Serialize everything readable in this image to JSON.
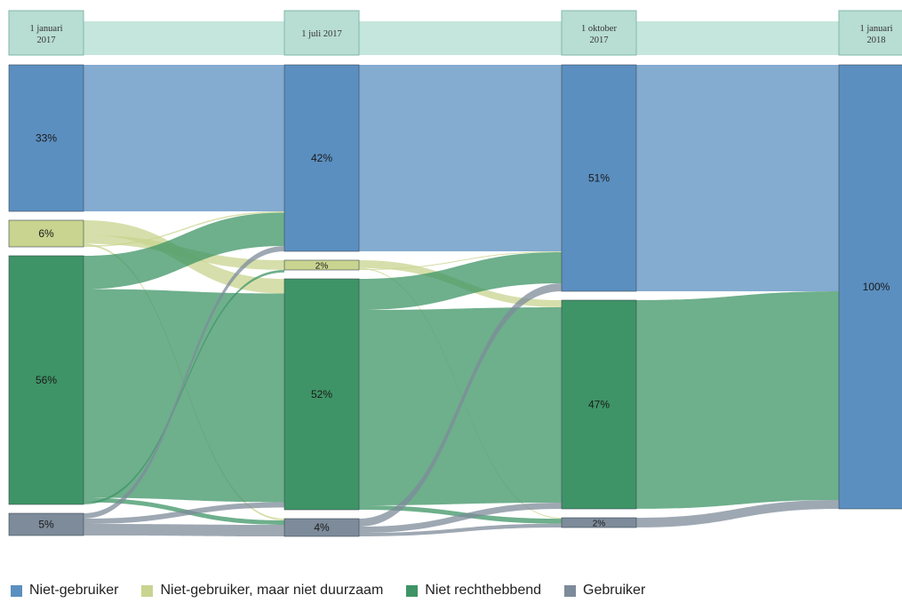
{
  "chart_data": {
    "type": "sankey",
    "columns": [
      "1 januari 2017",
      "1 juli 2017",
      "1 oktober 2017",
      "1 januari 2018"
    ],
    "column_labels": [
      [
        "1 januari",
        "2017"
      ],
      [
        "1 juli 2017"
      ],
      [
        "1 oktober",
        "2017"
      ],
      [
        "1 januari",
        "2018"
      ]
    ],
    "categories": [
      "Niet-gebruiker",
      "Niet-gebruiker, maar niet duurzaam",
      "Niet rechthebbend",
      "Gebruiker"
    ],
    "colors": {
      "Niet-gebruiker": "#5b8fc0",
      "Niet-gebruiker, maar niet duurzaam": "#c8d48f",
      "Niet rechthebbend": "#3e9466",
      "Gebruiker": "#7d8b9a"
    },
    "node_values": [
      {
        "Niet-gebruiker": 33,
        "Niet-gebruiker, maar niet duurzaam": 6,
        "Niet rechthebbend": 56,
        "Gebruiker": 5
      },
      {
        "Niet-gebruiker": 42,
        "Niet-gebruiker, maar niet duurzaam": 2,
        "Niet rechthebbend": 52,
        "Gebruiker": 4
      },
      {
        "Niet-gebruiker": 51,
        "Niet rechthebbend": 47,
        "Gebruiker": 2
      },
      {
        "Niet-gebruiker": 100
      }
    ],
    "node_labels": [
      {
        "Niet-gebruiker": "33%",
        "Niet-gebruiker, maar niet duurzaam": "6%",
        "Niet rechthebbend": "56%",
        "Gebruiker": "5%"
      },
      {
        "Niet-gebruiker": "42%",
        "Niet-gebruiker, maar niet duurzaam": "2%",
        "Niet rechthebbend": "52%",
        "Gebruiker": "4%"
      },
      {
        "Niet-gebruiker": "51%",
        "Niet rechthebbend": "47%",
        "Gebruiker": "2%"
      },
      {
        "Niet-gebruiker": "100%"
      }
    ],
    "links": [
      {
        "stage": 0,
        "from": "Niet-gebruiker",
        "to": "Niet-gebruiker",
        "value": 33
      },
      {
        "stage": 0,
        "from": "Niet-gebruiker, maar niet duurzaam",
        "to": "Niet rechthebbend",
        "value": 3.3
      },
      {
        "stage": 0,
        "from": "Niet-gebruiker, maar niet duurzaam",
        "to": "Niet-gebruiker, maar niet duurzaam",
        "value": 2
      },
      {
        "stage": 0,
        "from": "Niet-gebruiker, maar niet duurzaam",
        "to": "Gebruiker",
        "value": 0.4
      },
      {
        "stage": 0,
        "from": "Niet-gebruiker, maar niet duurzaam",
        "to": "Niet-gebruiker",
        "value": 0.3
      },
      {
        "stage": 0,
        "from": "Niet rechthebbend",
        "to": "Niet-gebruiker",
        "value": 7.5
      },
      {
        "stage": 0,
        "from": "Niet rechthebbend",
        "to": "Niet rechthebbend",
        "value": 47
      },
      {
        "stage": 0,
        "from": "Niet rechthebbend",
        "to": "Gebruiker",
        "value": 1
      },
      {
        "stage": 0,
        "from": "Niet rechthebbend",
        "to": "Niet-gebruiker, maar niet duurzaam",
        "value": 0.5
      },
      {
        "stage": 0,
        "from": "Gebruiker",
        "to": "Niet-gebruiker",
        "value": 1.2
      },
      {
        "stage": 0,
        "from": "Gebruiker",
        "to": "Niet rechthebbend",
        "value": 1.2
      },
      {
        "stage": 0,
        "from": "Gebruiker",
        "to": "Gebruiker",
        "value": 2.6
      },
      {
        "stage": 1,
        "from": "Niet-gebruiker",
        "to": "Niet-gebruiker",
        "value": 42
      },
      {
        "stage": 1,
        "from": "Niet-gebruiker, maar niet duurzaam",
        "to": "Niet rechthebbend",
        "value": 1.6
      },
      {
        "stage": 1,
        "from": "Niet-gebruiker, maar niet duurzaam",
        "to": "Gebruiker",
        "value": 0.2
      },
      {
        "stage": 1,
        "from": "Niet-gebruiker, maar niet duurzaam",
        "to": "Niet-gebruiker",
        "value": 0.2
      },
      {
        "stage": 1,
        "from": "Niet rechthebbend",
        "to": "Niet-gebruiker",
        "value": 7
      },
      {
        "stage": 1,
        "from": "Niet rechthebbend",
        "to": "Niet rechthebbend",
        "value": 44
      },
      {
        "stage": 1,
        "from": "Niet rechthebbend",
        "to": "Gebruiker",
        "value": 1
      },
      {
        "stage": 1,
        "from": "Gebruiker",
        "to": "Niet-gebruiker",
        "value": 1.8
      },
      {
        "stage": 1,
        "from": "Gebruiker",
        "to": "Niet rechthebbend",
        "value": 1.4
      },
      {
        "stage": 1,
        "from": "Gebruiker",
        "to": "Gebruiker",
        "value": 0.8
      },
      {
        "stage": 2,
        "from": "Niet-gebruiker",
        "to": "Niet-gebruiker",
        "value": 51
      },
      {
        "stage": 2,
        "from": "Niet rechthebbend",
        "to": "Niet-gebruiker",
        "value": 47
      },
      {
        "stage": 2,
        "from": "Gebruiker",
        "to": "Niet-gebruiker",
        "value": 2
      }
    ],
    "legend": [
      "Niet-gebruiker",
      "Niet-gebruiker, maar niet duurzaam",
      "Niet rechthebbend",
      "Gebruiker"
    ],
    "legend_position": "bottom"
  }
}
